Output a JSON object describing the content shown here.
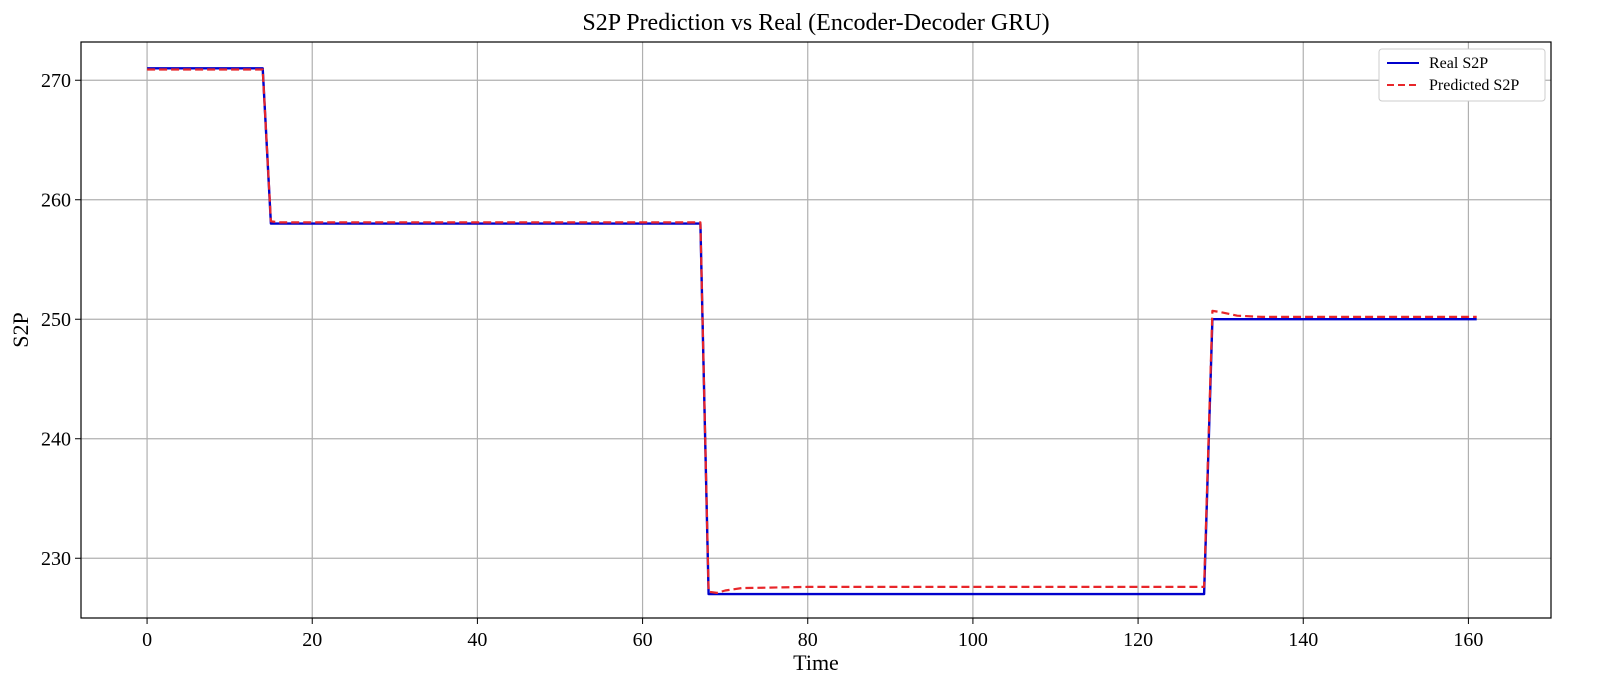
{
  "chart_data": {
    "type": "line",
    "title": "S2P Prediction vs Real (Encoder-Decoder GRU)",
    "xlabel": "Time",
    "ylabel": "S2P",
    "xlim": [
      -8,
      170
    ],
    "ylim": [
      225,
      273.2
    ],
    "xticks": [
      0,
      20,
      40,
      60,
      80,
      100,
      120,
      140,
      160
    ],
    "yticks": [
      230,
      240,
      250,
      260,
      270
    ],
    "grid": true,
    "legend_position": "upper-right",
    "series": [
      {
        "name": "Real S2P",
        "color": "#0000cc",
        "style": "solid",
        "x": [
          0,
          14,
          15,
          67,
          68,
          128,
          129,
          161
        ],
        "y": [
          271,
          271,
          258,
          258,
          227,
          227,
          250,
          250
        ]
      },
      {
        "name": "Predicted S2P",
        "color": "#e8262a",
        "style": "dashed",
        "x": [
          0,
          14,
          15,
          16,
          67,
          68,
          69,
          70,
          72,
          80,
          128,
          129,
          130,
          132,
          135,
          161
        ],
        "y": [
          270.9,
          270.9,
          258.2,
          258.1,
          258.1,
          227.2,
          227.1,
          227.3,
          227.5,
          227.6,
          227.6,
          250.7,
          250.6,
          250.3,
          250.2,
          250.2
        ]
      }
    ]
  }
}
